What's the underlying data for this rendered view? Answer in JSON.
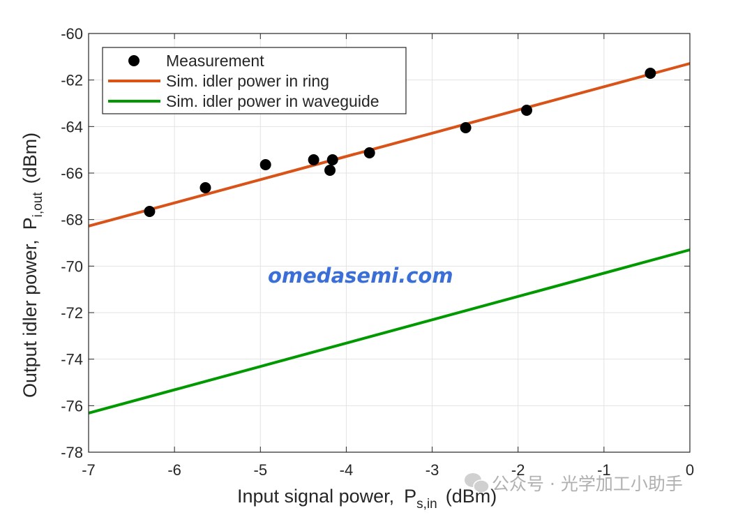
{
  "chart_data": {
    "type": "line",
    "xlabel": "Input signal power,",
    "xlabel_symbol": "P",
    "xlabel_sub": "s,in",
    "xlabel_unit": "(dBm)",
    "ylabel": "Output idler power,",
    "ylabel_symbol": "P",
    "ylabel_sub": "i,out",
    "ylabel_unit": "(dBm)",
    "xlim": [
      -7,
      0
    ],
    "ylim": [
      -78,
      -60
    ],
    "xticks": [
      -7,
      -6,
      -5,
      -4,
      -3,
      -2,
      -1,
      0
    ],
    "yticks": [
      -78,
      -76,
      -74,
      -72,
      -70,
      -68,
      -66,
      -64,
      -62,
      -60
    ],
    "grid": true,
    "legend_position": "top-left",
    "series": [
      {
        "name": "Measurement",
        "kind": "scatter",
        "color": "#000000",
        "x": [
          -6.29,
          -5.64,
          -4.94,
          -4.38,
          -4.16,
          -4.19,
          -3.73,
          -2.61,
          -1.9,
          -0.46
        ],
        "y": [
          -67.65,
          -66.63,
          -65.64,
          -65.43,
          -65.43,
          -65.88,
          -65.13,
          -64.05,
          -63.3,
          -61.71
        ]
      },
      {
        "name": "Sim. idler power in ring",
        "kind": "line",
        "color": "#d95319",
        "x": [
          -7,
          0
        ],
        "y": [
          -68.28,
          -61.29
        ]
      },
      {
        "name": "Sim. idler power in waveguide",
        "kind": "line",
        "color": "#009900",
        "x": [
          -7,
          0
        ],
        "y": [
          -76.32,
          -69.3
        ]
      }
    ]
  },
  "watermark": "omedasemi.com",
  "watermark2": "公众号 · 光学加工小助手"
}
